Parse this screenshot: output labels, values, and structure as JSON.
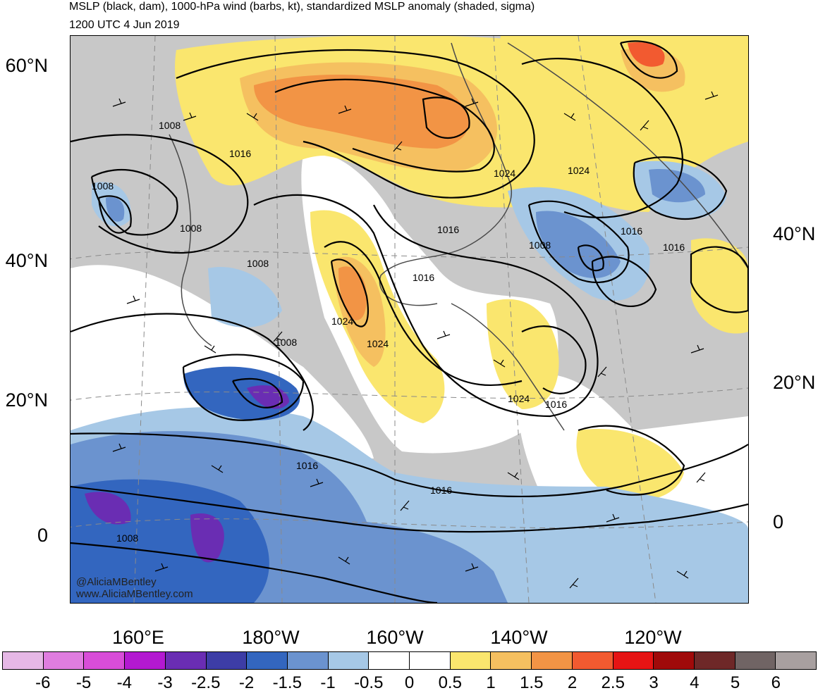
{
  "title": "MSLP (black, dam), 1000-hPa wind (barbs, kt), standardized MSLP anomaly (shaded, sigma)",
  "subtitle": "1200 UTC 4 Jun 2019",
  "lat_labels_left": [
    "60°N",
    "40°N",
    "20°N",
    "0"
  ],
  "lat_labels_right": [
    "40°N",
    "20°N",
    "0"
  ],
  "lon_labels": [
    "160°E",
    "180°W",
    "160°W",
    "140°W",
    "120°W"
  ],
  "isobar_labels": [
    "1008",
    "1008",
    "1008",
    "1008",
    "1008",
    "1008",
    "1016",
    "1016",
    "1016",
    "1016",
    "1016",
    "1016",
    "1016",
    "1024",
    "1024",
    "1024",
    "1024",
    "1024",
    "1008",
    "1016"
  ],
  "watermark": {
    "handle": "@AliciaMBentley",
    "site": "www.AliciaMBentley.com"
  },
  "colorbar": {
    "labels": [
      "-6",
      "-5",
      "-4",
      "-3",
      "-2.5",
      "-2",
      "-1.5",
      "-1",
      "-0.5",
      "0",
      "0.5",
      "1",
      "1.5",
      "2",
      "2.5",
      "3",
      "4",
      "5",
      "6"
    ],
    "colors": [
      "#e6b8e6",
      "#e07de0",
      "#d84dd8",
      "#b319d1",
      "#6a2db3",
      "#3d3da6",
      "#3366bf",
      "#6b93cf",
      "#a6c8e6",
      "#ffffff",
      "#ffffff",
      "#fae66e",
      "#f5c060",
      "#f29445",
      "#f25a30",
      "#e61414",
      "#a00a0a",
      "#6e2828",
      "#706464",
      "#a8a0a0"
    ]
  }
}
